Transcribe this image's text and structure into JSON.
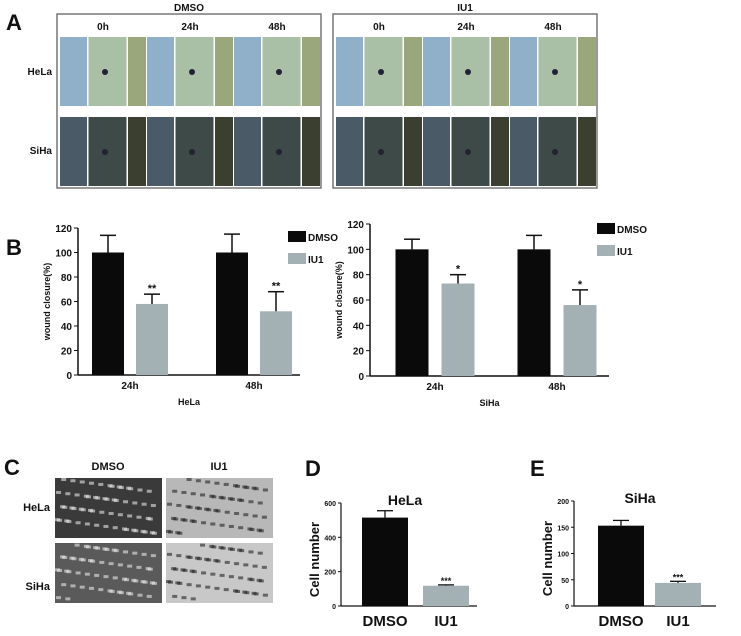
{
  "panel_labels": {
    "a": "A",
    "b": "B",
    "c": "C",
    "d": "D",
    "e": "E"
  },
  "panel_a": {
    "groups": [
      "DMSO",
      "IU1"
    ],
    "timepoints": [
      "0h",
      "24h",
      "48h"
    ],
    "rows": [
      "HeLa",
      "SiHa"
    ],
    "colors": {
      "hela": [
        "#8fb0c8",
        "#a9bfa6",
        "#9aa77c"
      ],
      "siha": [
        "#4a5a66",
        "#3e4a48",
        "#3a3f30"
      ]
    }
  },
  "panel_c": {
    "columns": [
      "DMSO",
      "IU1"
    ],
    "rows": [
      "HeLa",
      "SiHa"
    ]
  },
  "chart_data": [
    {
      "id": "B-HeLa",
      "type": "bar",
      "xlabel": "HeLa",
      "ylabel": "wound closure(%)",
      "categories": [
        "24h",
        "48h"
      ],
      "ylim": [
        0,
        120
      ],
      "yticks": [
        0,
        20,
        40,
        60,
        80,
        100,
        120
      ],
      "legend": "top-right",
      "series": [
        {
          "name": "DMSO",
          "color": "#0a0a0a",
          "values": [
            100,
            100
          ],
          "errors": [
            14,
            15
          ],
          "annotations": [
            "",
            ""
          ]
        },
        {
          "name": "IU1",
          "color": "#a3b1b5",
          "values": [
            58,
            52
          ],
          "errors": [
            8,
            16
          ],
          "annotations": [
            "**",
            "**"
          ]
        }
      ]
    },
    {
      "id": "B-SiHa",
      "type": "bar",
      "xlabel": "SiHa",
      "ylabel": "wound closure(%)",
      "categories": [
        "24h",
        "48h"
      ],
      "ylim": [
        0,
        120
      ],
      "yticks": [
        0,
        20,
        40,
        60,
        80,
        100,
        120
      ],
      "legend": "top-right",
      "series": [
        {
          "name": "DMSO",
          "color": "#0a0a0a",
          "values": [
            100,
            100
          ],
          "errors": [
            8,
            11
          ],
          "annotations": [
            "",
            ""
          ]
        },
        {
          "name": "IU1",
          "color": "#a3b1b5",
          "values": [
            73,
            56
          ],
          "errors": [
            7,
            12
          ],
          "annotations": [
            "*",
            "*"
          ]
        }
      ]
    },
    {
      "id": "D",
      "type": "bar",
      "title": "HeLa",
      "ylabel": "Cell number",
      "categories": [
        "DMSO",
        "IU1"
      ],
      "ylim": [
        0,
        600
      ],
      "yticks": [
        0,
        200,
        400,
        600
      ],
      "values": [
        515,
        118
      ],
      "errors": [
        40,
        5
      ],
      "colors": [
        "#0a0a0a",
        "#a3b1b5"
      ],
      "annotations": [
        "",
        "***"
      ]
    },
    {
      "id": "E",
      "type": "bar",
      "title": "SiHa",
      "ylabel": "Cell number",
      "categories": [
        "DMSO",
        "IU1"
      ],
      "ylim": [
        0,
        200
      ],
      "yticks": [
        0,
        50,
        100,
        150,
        200
      ],
      "values": [
        153,
        44
      ],
      "errors": [
        10,
        3
      ],
      "colors": [
        "#0a0a0a",
        "#a3b1b5"
      ],
      "annotations": [
        "",
        "***"
      ]
    }
  ]
}
